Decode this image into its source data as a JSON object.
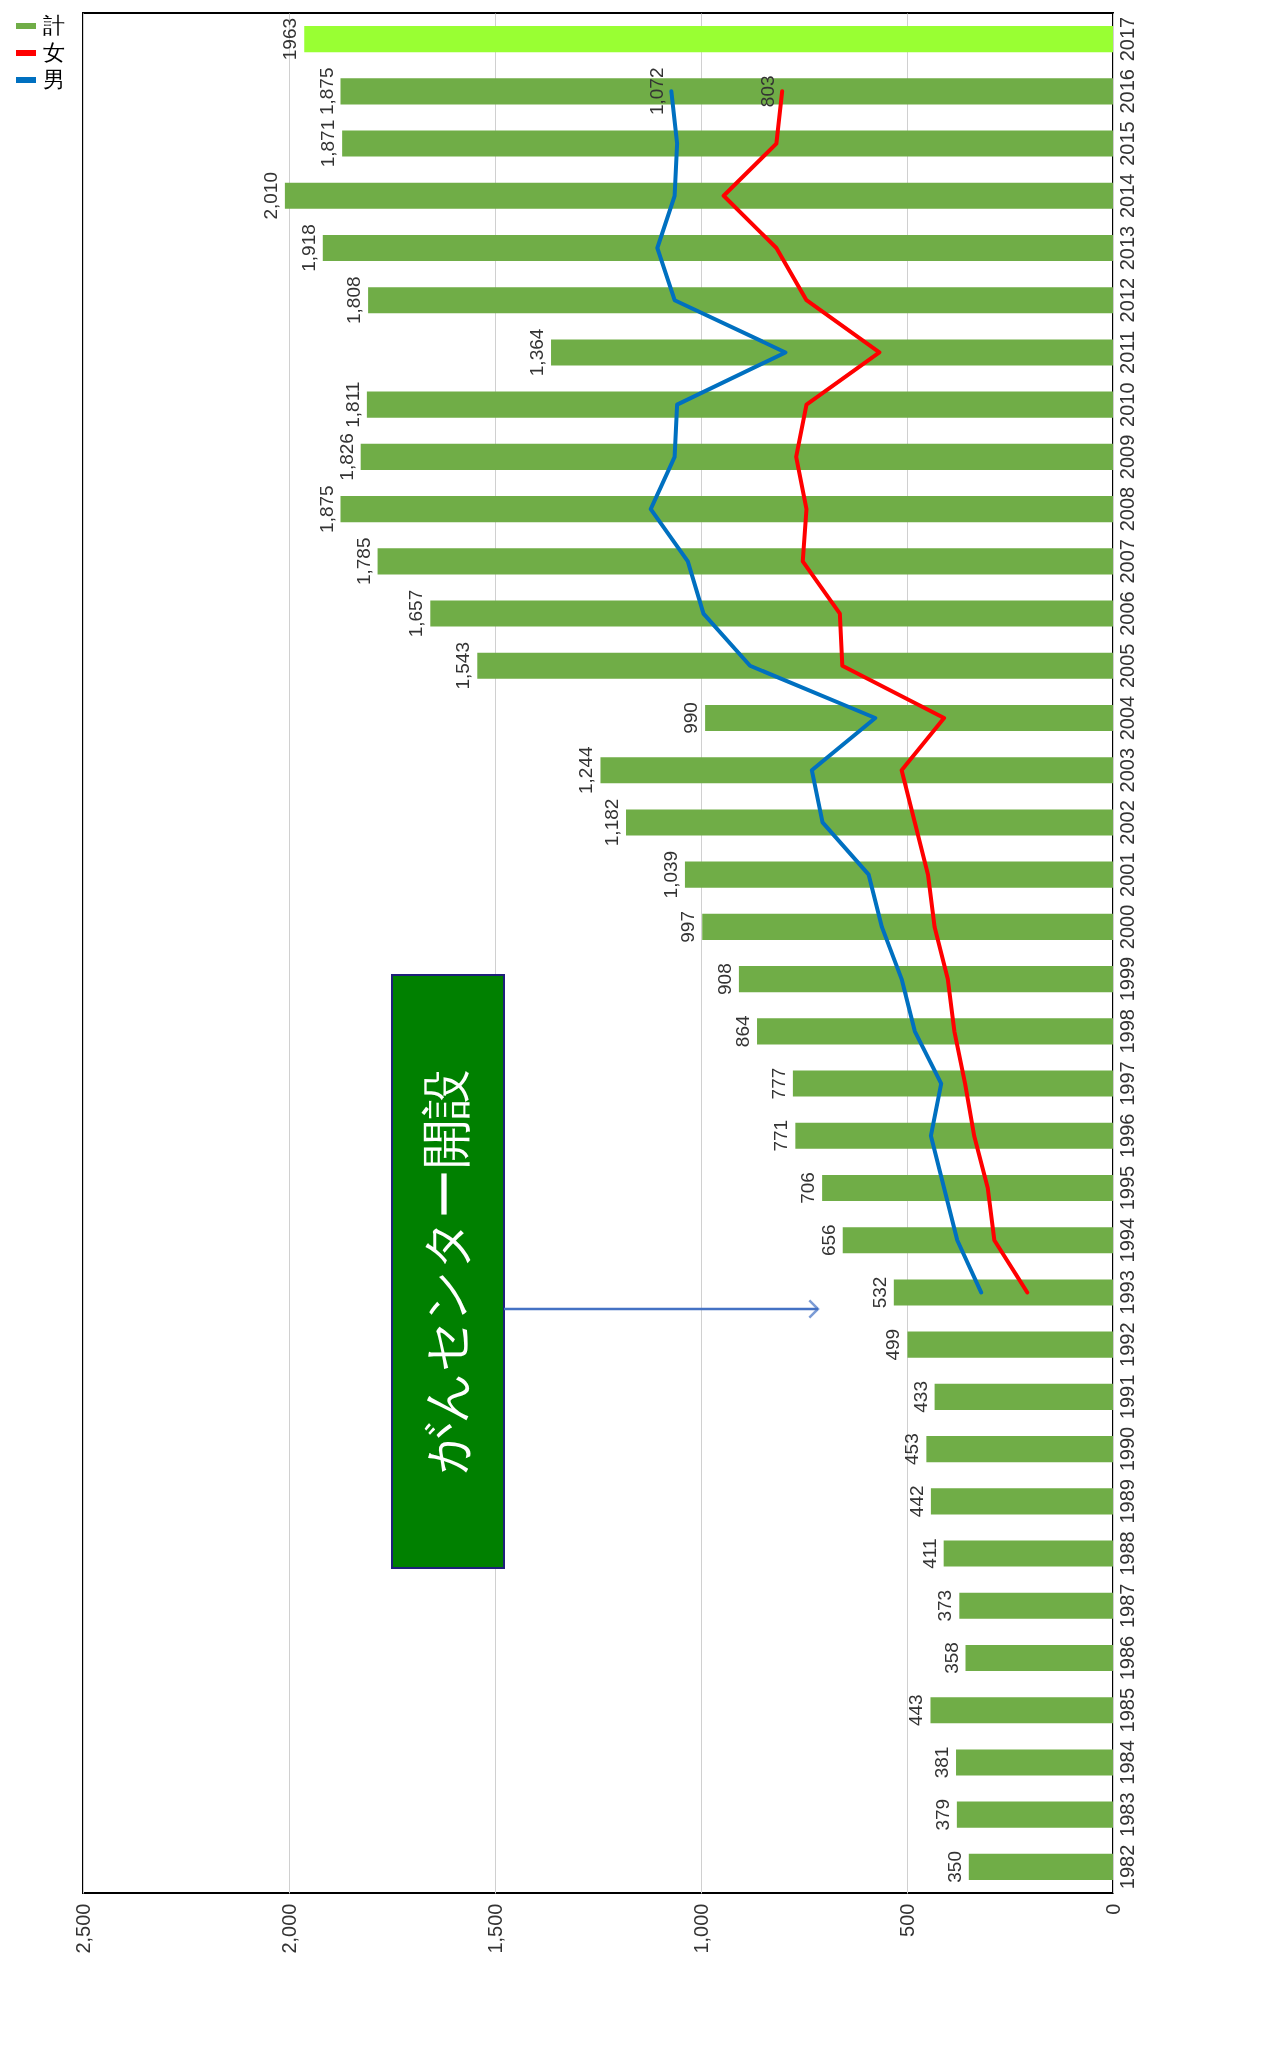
{
  "chart_data": {
    "type": "bar",
    "orientation": "horizontal",
    "categories": [
      "2017",
      "2016",
      "2015",
      "2014",
      "2013",
      "2012",
      "2011",
      "2010",
      "2009",
      "2008",
      "2007",
      "2006",
      "2005",
      "2004",
      "2003",
      "2002",
      "2001",
      "2000",
      "1999",
      "1998",
      "1997",
      "1996",
      "1995",
      "1994",
      "1993",
      "1992",
      "1991",
      "1990",
      "1989",
      "1988",
      "1987",
      "1986",
      "1985",
      "1984",
      "1983",
      "1982"
    ],
    "series": [
      {
        "name": "計",
        "type": "bar",
        "color": "#70ad47",
        "colors": [
          "#99ff33",
          "#70ad47",
          "#70ad47",
          "#70ad47",
          "#70ad47",
          "#70ad47",
          "#70ad47",
          "#70ad47",
          "#70ad47",
          "#70ad47",
          "#70ad47",
          "#70ad47",
          "#70ad47",
          "#70ad47",
          "#70ad47",
          "#70ad47",
          "#70ad47",
          "#70ad47",
          "#70ad47",
          "#70ad47",
          "#70ad47",
          "#70ad47",
          "#70ad47",
          "#70ad47",
          "#70ad47",
          "#70ad47",
          "#70ad47",
          "#70ad47",
          "#70ad47",
          "#70ad47",
          "#70ad47",
          "#70ad47",
          "#70ad47",
          "#70ad47",
          "#70ad47",
          "#70ad47"
        ],
        "values": [
          1963,
          1875,
          1871,
          2010,
          1918,
          1808,
          1364,
          1811,
          1826,
          1875,
          1785,
          1657,
          1543,
          990,
          1244,
          1182,
          1039,
          997,
          908,
          864,
          777,
          771,
          706,
          656,
          532,
          499,
          433,
          453,
          442,
          411,
          373,
          358,
          443,
          381,
          379,
          350
        ],
        "value_labels": [
          "1963",
          "1,875",
          "1,871",
          "2,010",
          "1,918",
          "1,808",
          "1,364",
          "1,811",
          "1,826",
          "1,875",
          "1,785",
          "1,657",
          "1,543",
          "990",
          "1,244",
          "1,182",
          "1,039",
          "997",
          "908",
          "864",
          "777",
          "771",
          "706",
          "656",
          "532",
          "499",
          "433",
          "453",
          "442",
          "411",
          "373",
          "358",
          "443",
          "381",
          "379",
          "350"
        ]
      },
      {
        "name": "女",
        "type": "line",
        "color": "#ff0000",
        "values": [
          null,
          803,
          817,
          945,
          817,
          744,
          567,
          744,
          769,
          744,
          753,
          663,
          657,
          410,
          513,
          481,
          449,
          433,
          401,
          385,
          359,
          337,
          304,
          288,
          208,
          null,
          null,
          null,
          null,
          null,
          null,
          null,
          null,
          null,
          null,
          null
        ],
        "value_labels": [
          null,
          "803",
          null,
          null,
          null,
          null,
          null,
          null,
          null,
          null,
          null,
          null,
          null,
          null,
          null,
          null,
          null,
          null,
          null,
          null,
          null,
          null,
          null,
          null,
          null,
          null,
          null,
          null,
          null,
          null,
          null,
          null,
          null,
          null,
          null,
          null
        ]
      },
      {
        "name": "男",
        "type": "line",
        "color": "#0070c0",
        "values": [
          null,
          1072,
          1058,
          1064,
          1106,
          1064,
          795,
          1058,
          1064,
          1122,
          1032,
          994,
          881,
          577,
          731,
          705,
          593,
          561,
          513,
          481,
          417,
          442,
          410,
          378,
          320,
          null,
          null,
          null,
          null,
          null,
          null,
          null,
          null,
          null,
          null,
          null
        ],
        "value_labels": [
          null,
          "1,072",
          null,
          null,
          null,
          null,
          null,
          null,
          null,
          null,
          null,
          null,
          null,
          null,
          null,
          null,
          null,
          null,
          null,
          null,
          null,
          null,
          null,
          null,
          null,
          null,
          null,
          null,
          null,
          null,
          null,
          null,
          null,
          null,
          null,
          null
        ]
      }
    ],
    "xlim": [
      2500,
      0
    ],
    "xticks": [
      {
        "value": 2500,
        "label": "2,500"
      },
      {
        "value": 2000,
        "label": "2,000"
      },
      {
        "value": 1500,
        "label": "1,500"
      },
      {
        "value": 1000,
        "label": "1,000"
      },
      500,
      0
    ],
    "grid": "x",
    "legend": "left",
    "annotations": [
      "がんセンター開設"
    ]
  }
}
